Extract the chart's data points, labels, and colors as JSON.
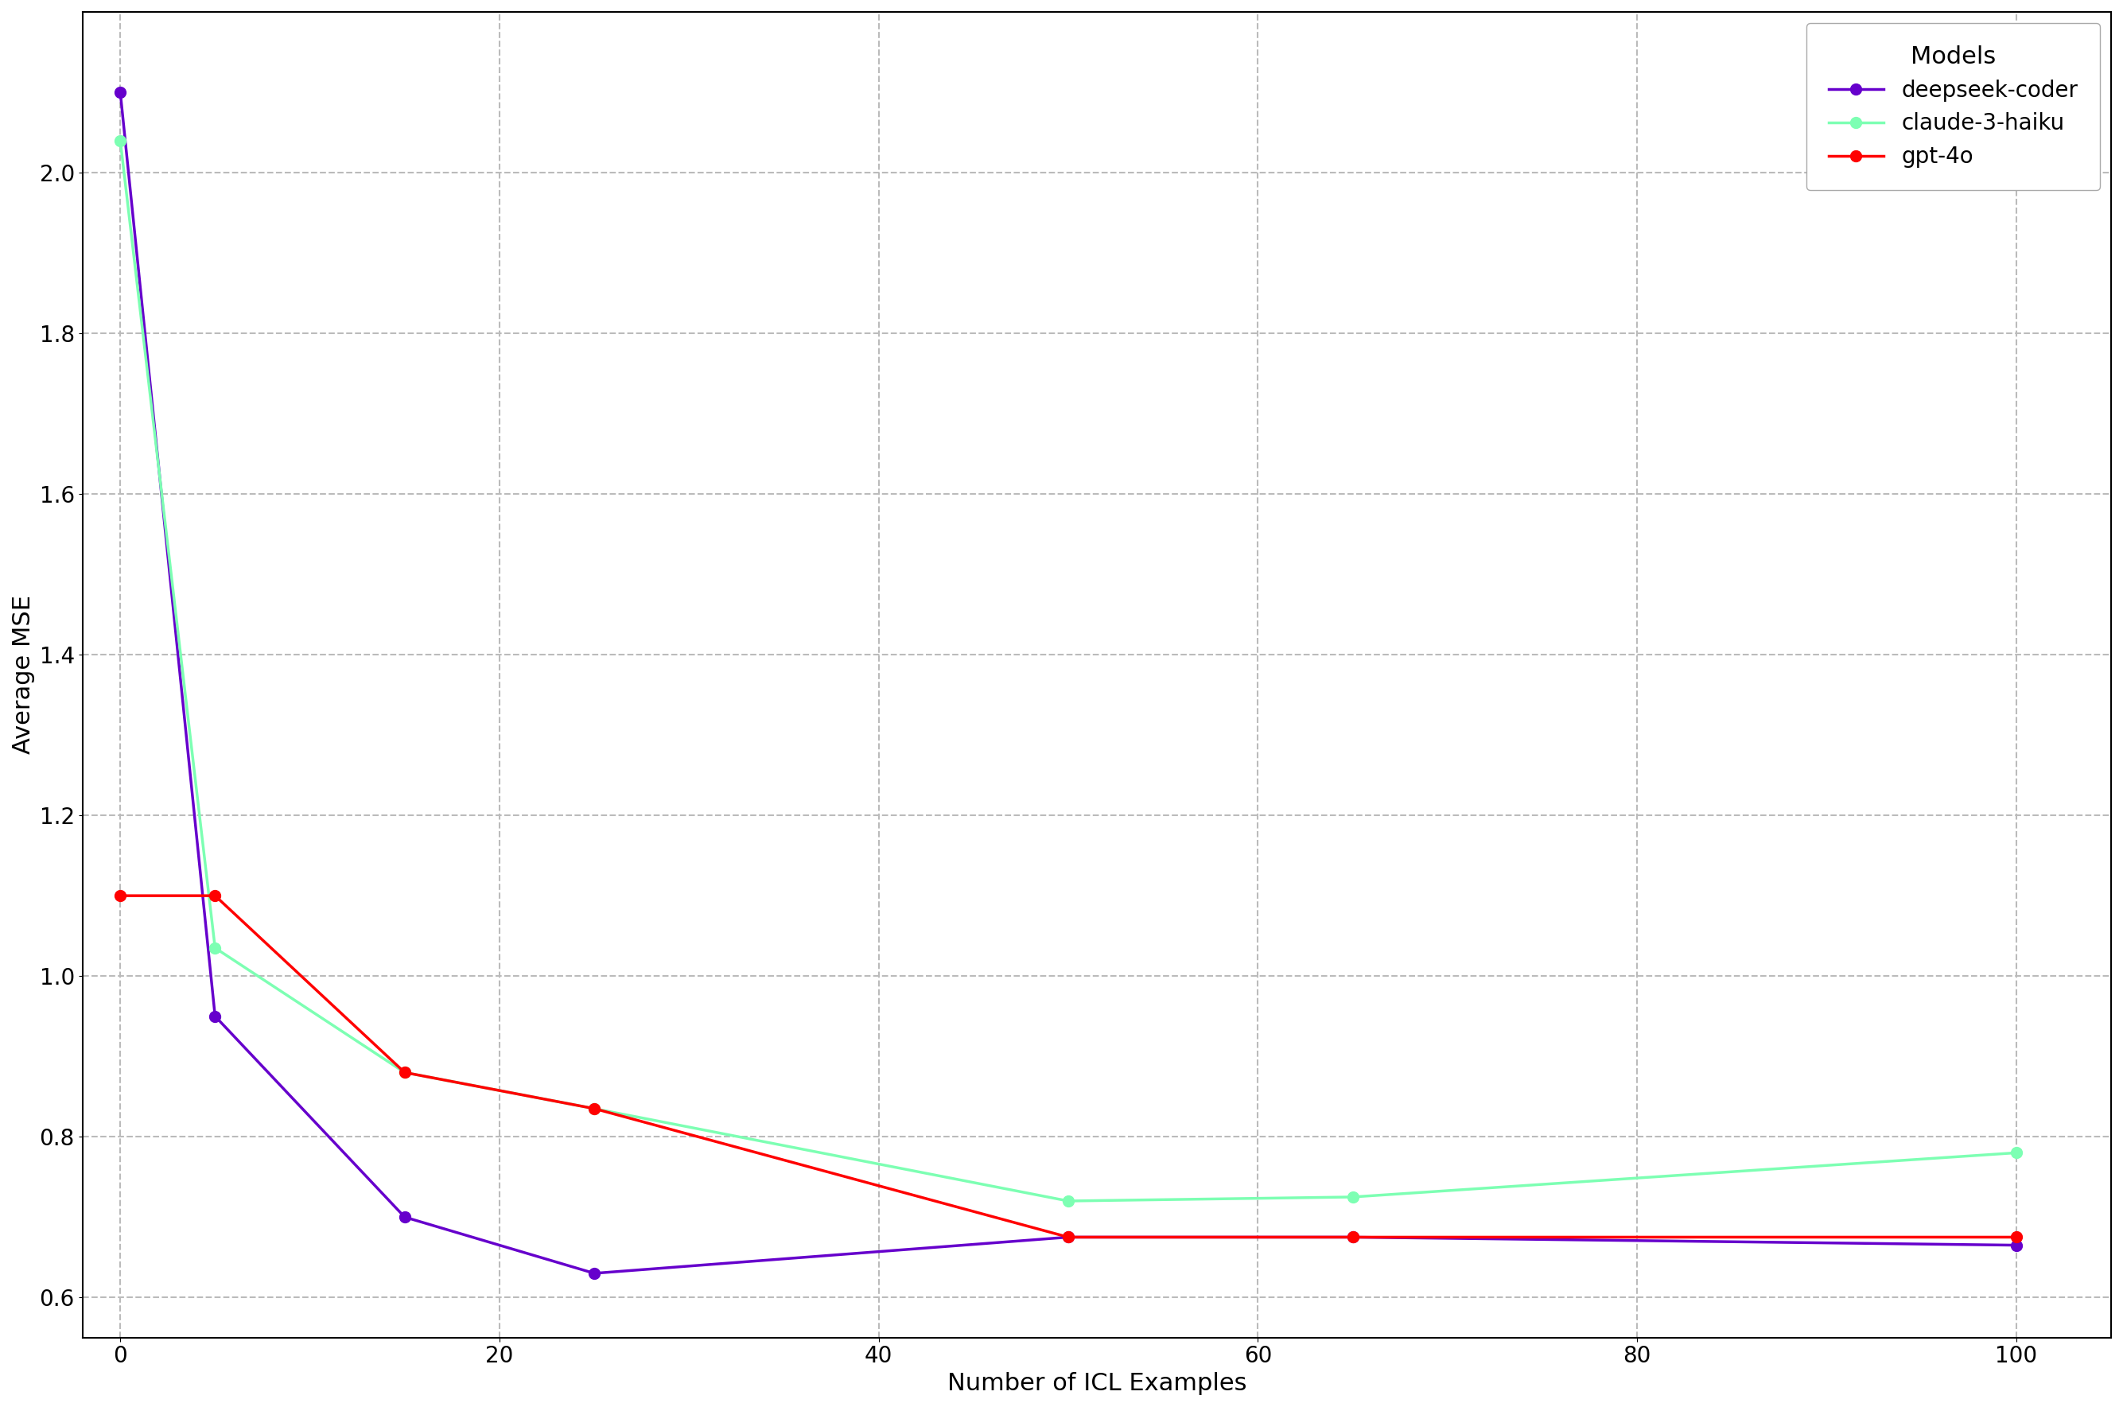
{
  "xlabel": "Number of ICL Examples",
  "ylabel": "Average MSE",
  "series": [
    {
      "label": "deepseek-coder",
      "color": "#6600CC",
      "marker": "o",
      "x": [
        0,
        5,
        15,
        25,
        50,
        65,
        100
      ],
      "y": [
        2.1,
        0.95,
        0.7,
        0.63,
        0.675,
        0.675,
        0.665
      ]
    },
    {
      "label": "claude-3-haiku",
      "color": "#7DFFB3",
      "marker": "o",
      "x": [
        0,
        5,
        15,
        25,
        50,
        65,
        100
      ],
      "y": [
        2.04,
        1.035,
        0.88,
        0.835,
        0.72,
        0.725,
        0.78
      ]
    },
    {
      "label": "gpt-4o",
      "color": "#FF0000",
      "marker": "o",
      "x": [
        0,
        5,
        15,
        25,
        50,
        65,
        100
      ],
      "y": [
        1.1,
        1.1,
        0.88,
        0.835,
        0.675,
        0.675,
        0.675
      ]
    }
  ],
  "xlim": [
    -2,
    105
  ],
  "ylim": [
    0.55,
    2.2
  ],
  "yticks": [
    0.6,
    0.8,
    1.0,
    1.2,
    1.4,
    1.6,
    1.8,
    2.0
  ],
  "xticks": [
    0,
    20,
    40,
    60,
    80,
    100
  ],
  "grid_color": "#bbbbbb",
  "grid_linestyle": "--",
  "background_color": "#ffffff",
  "legend_title": "Models",
  "legend_title_fontsize": 22,
  "legend_fontsize": 20,
  "axis_label_fontsize": 22,
  "tick_fontsize": 20,
  "linewidth": 2.5,
  "markersize": 10
}
